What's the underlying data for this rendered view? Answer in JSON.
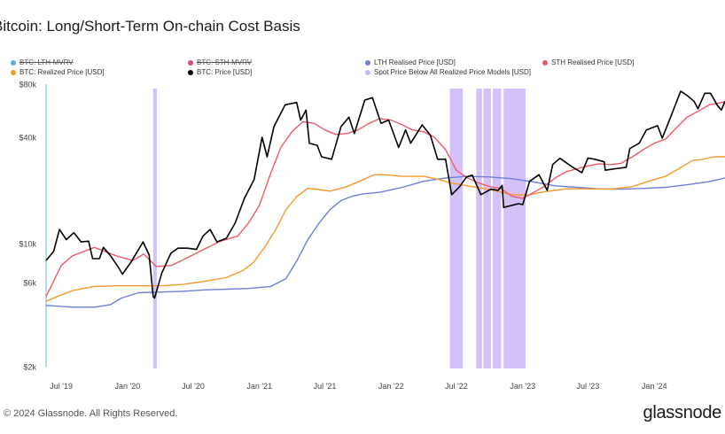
{
  "title": "Bitcoin: Long/Short-Term On-chain Cost Basis",
  "footer": "© 2024 Glassnode. All Rights Reserved.",
  "brand": "glassnode",
  "colors": {
    "lth_mvrv": "#5ab4e0",
    "sth_mvrv": "#e0457b",
    "lth_price": "#6d7fd6",
    "sth_price": "#ee5a6a",
    "realized_price": "#f39a2b",
    "btc_price": "#000000",
    "below_all": "#cdb6f7"
  },
  "legend": [
    {
      "label": "BTC: LTH-MVRV",
      "color": "#5ab4e0",
      "disabled": true
    },
    {
      "label": "BTC: STH-MVRV",
      "color": "#e0457b",
      "disabled": true
    },
    {
      "label": "LTH Realised Price [USD]",
      "color": "#6d7fd6",
      "disabled": false
    },
    {
      "label": "STH Realised Price [USD]",
      "color": "#ee5a6a",
      "disabled": false
    },
    {
      "label": "BTC: Realized Price [USD]",
      "color": "#f39a2b",
      "disabled": false
    },
    {
      "label": "BTC: Price [USD]",
      "color": "#000000",
      "disabled": false
    },
    {
      "label": "Spot Price Below All Realized Price Models [USD]",
      "color": "#cdb6f7",
      "disabled": false
    }
  ],
  "chart_data": {
    "type": "line",
    "title": "Bitcoin: Long/Short-Term On-chain Cost Basis",
    "y_scale": "log",
    "ylim": [
      2000,
      80000
    ],
    "xlim": [
      "2019-05-20",
      "2024-07-15"
    ],
    "y_ticks": [
      {
        "value": 2000,
        "label": "$2k"
      },
      {
        "value": 6000,
        "label": "$6k"
      },
      {
        "value": 10000,
        "label": "$10k"
      },
      {
        "value": 40000,
        "label": "$40k"
      },
      {
        "value": 80000,
        "label": "$80k"
      }
    ],
    "x_ticks": [
      {
        "date": "2019-07-01",
        "label": "Jul '19"
      },
      {
        "date": "2020-01-01",
        "label": "Jan '20"
      },
      {
        "date": "2020-07-01",
        "label": "Jul '20"
      },
      {
        "date": "2021-01-01",
        "label": "Jan '21"
      },
      {
        "date": "2021-07-01",
        "label": "Jul '21"
      },
      {
        "date": "2022-01-01",
        "label": "Jan '22"
      },
      {
        "date": "2022-07-01",
        "label": "Jul '22"
      },
      {
        "date": "2023-01-01",
        "label": "Jan '23"
      },
      {
        "date": "2023-07-01",
        "label": "Jul '23"
      },
      {
        "date": "2024-01-01",
        "label": "Jan '24"
      }
    ],
    "grid": false,
    "legend_position": "top",
    "series": [
      {
        "name": "BTC: Price [USD]",
        "key": "btc_price",
        "points": [
          [
            "2019-05-20",
            8000
          ],
          [
            "2019-06-10",
            9000
          ],
          [
            "2019-06-26",
            12000
          ],
          [
            "2019-07-15",
            10500
          ],
          [
            "2019-08-05",
            11500
          ],
          [
            "2019-08-25",
            10200
          ],
          [
            "2019-09-15",
            10300
          ],
          [
            "2019-09-26",
            8200
          ],
          [
            "2019-10-15",
            8200
          ],
          [
            "2019-10-26",
            9500
          ],
          [
            "2019-11-15",
            8500
          ],
          [
            "2019-12-05",
            7400
          ],
          [
            "2019-12-18",
            6700
          ],
          [
            "2020-01-10",
            7800
          ],
          [
            "2020-02-13",
            10200
          ],
          [
            "2020-03-01",
            8600
          ],
          [
            "2020-03-12",
            5000
          ],
          [
            "2020-03-16",
            4900
          ],
          [
            "2020-04-05",
            6800
          ],
          [
            "2020-04-30",
            8800
          ],
          [
            "2020-05-20",
            9400
          ],
          [
            "2020-06-15",
            9400
          ],
          [
            "2020-07-10",
            9250
          ],
          [
            "2020-07-28",
            11000
          ],
          [
            "2020-08-17",
            12000
          ],
          [
            "2020-09-05",
            10200
          ],
          [
            "2020-10-01",
            10700
          ],
          [
            "2020-10-25",
            13000
          ],
          [
            "2020-11-20",
            18000
          ],
          [
            "2020-12-17",
            23000
          ],
          [
            "2021-01-08",
            40000
          ],
          [
            "2021-01-22",
            31000
          ],
          [
            "2021-02-10",
            46000
          ],
          [
            "2021-03-13",
            61000
          ],
          [
            "2021-04-14",
            63000
          ],
          [
            "2021-04-25",
            50000
          ],
          [
            "2021-05-10",
            57000
          ],
          [
            "2021-05-19",
            37000
          ],
          [
            "2021-06-10",
            36000
          ],
          [
            "2021-06-22",
            31000
          ],
          [
            "2021-07-20",
            30000
          ],
          [
            "2021-08-15",
            46000
          ],
          [
            "2021-09-06",
            52000
          ],
          [
            "2021-09-21",
            42000
          ],
          [
            "2021-10-20",
            65000
          ],
          [
            "2021-11-10",
            67000
          ],
          [
            "2021-12-04",
            48000
          ],
          [
            "2021-12-25",
            50000
          ],
          [
            "2022-01-22",
            35000
          ],
          [
            "2022-02-10",
            44000
          ],
          [
            "2022-02-24",
            37000
          ],
          [
            "2022-03-28",
            47000
          ],
          [
            "2022-04-20",
            41000
          ],
          [
            "2022-05-10",
            30000
          ],
          [
            "2022-06-01",
            30000
          ],
          [
            "2022-06-18",
            18900
          ],
          [
            "2022-07-10",
            21000
          ],
          [
            "2022-07-29",
            23800
          ],
          [
            "2022-08-14",
            24400
          ],
          [
            "2022-09-07",
            18900
          ],
          [
            "2022-10-05",
            20300
          ],
          [
            "2022-10-25",
            20000
          ],
          [
            "2022-11-05",
            21300
          ],
          [
            "2022-11-09",
            16000
          ],
          [
            "2022-12-20",
            16800
          ],
          [
            "2023-01-01",
            16600
          ],
          [
            "2023-01-20",
            22500
          ],
          [
            "2023-02-15",
            24500
          ],
          [
            "2023-03-10",
            20000
          ],
          [
            "2023-03-25",
            28000
          ],
          [
            "2023-04-14",
            30400
          ],
          [
            "2023-05-20",
            27000
          ],
          [
            "2023-06-14",
            25200
          ],
          [
            "2023-07-01",
            30500
          ],
          [
            "2023-07-20",
            30000
          ],
          [
            "2023-08-15",
            29000
          ],
          [
            "2023-08-18",
            26000
          ],
          [
            "2023-09-15",
            26500
          ],
          [
            "2023-10-15",
            27000
          ],
          [
            "2023-10-25",
            34500
          ],
          [
            "2023-11-20",
            37000
          ],
          [
            "2023-12-10",
            44000
          ],
          [
            "2024-01-10",
            46500
          ],
          [
            "2024-01-23",
            39500
          ],
          [
            "2024-02-15",
            52000
          ],
          [
            "2024-03-14",
            73000
          ],
          [
            "2024-04-01",
            69000
          ],
          [
            "2024-04-20",
            64000
          ],
          [
            "2024-05-01",
            58000
          ],
          [
            "2024-05-20",
            71000
          ],
          [
            "2024-06-05",
            71000
          ],
          [
            "2024-06-24",
            60500
          ],
          [
            "2024-07-05",
            57000
          ],
          [
            "2024-07-15",
            64000
          ]
        ]
      },
      {
        "name": "STH Realised Price [USD]",
        "key": "sth_price",
        "points": [
          [
            "2019-05-20",
            5000
          ],
          [
            "2019-07-01",
            7500
          ],
          [
            "2019-08-01",
            8500
          ],
          [
            "2019-10-01",
            9500
          ],
          [
            "2019-12-01",
            8500
          ],
          [
            "2020-01-15",
            8000
          ],
          [
            "2020-02-15",
            8700
          ],
          [
            "2020-03-20",
            7400
          ],
          [
            "2020-05-01",
            7500
          ],
          [
            "2020-06-15",
            8300
          ],
          [
            "2020-08-01",
            9300
          ],
          [
            "2020-09-15",
            10300
          ],
          [
            "2020-11-01",
            11000
          ],
          [
            "2020-12-01",
            13000
          ],
          [
            "2021-01-01",
            16500
          ],
          [
            "2021-02-01",
            25000
          ],
          [
            "2021-03-01",
            35000
          ],
          [
            "2021-04-01",
            43000
          ],
          [
            "2021-05-01",
            49000
          ],
          [
            "2021-06-01",
            48000
          ],
          [
            "2021-07-01",
            44000
          ],
          [
            "2021-08-01",
            41500
          ],
          [
            "2021-09-01",
            42000
          ],
          [
            "2021-10-01",
            44000
          ],
          [
            "2021-11-01",
            48000
          ],
          [
            "2021-12-01",
            51000
          ],
          [
            "2022-01-01",
            50000
          ],
          [
            "2022-02-01",
            47000
          ],
          [
            "2022-03-01",
            44000
          ],
          [
            "2022-04-01",
            43000
          ],
          [
            "2022-05-01",
            40000
          ],
          [
            "2022-06-01",
            34000
          ],
          [
            "2022-07-01",
            26000
          ],
          [
            "2022-08-01",
            23500
          ],
          [
            "2022-09-01",
            22000
          ],
          [
            "2022-10-01",
            21000
          ],
          [
            "2022-11-01",
            20500
          ],
          [
            "2022-12-01",
            18500
          ],
          [
            "2023-01-01",
            18000
          ],
          [
            "2023-02-01",
            19500
          ],
          [
            "2023-03-01",
            21000
          ],
          [
            "2023-04-01",
            23500
          ],
          [
            "2023-05-01",
            25500
          ],
          [
            "2023-06-01",
            26500
          ],
          [
            "2023-07-01",
            27500
          ],
          [
            "2023-08-01",
            28300
          ],
          [
            "2023-09-01",
            28000
          ],
          [
            "2023-10-01",
            28500
          ],
          [
            "2023-11-01",
            31000
          ],
          [
            "2023-12-01",
            34000
          ],
          [
            "2024-01-01",
            37000
          ],
          [
            "2024-02-01",
            39000
          ],
          [
            "2024-03-01",
            45000
          ],
          [
            "2024-04-01",
            52000
          ],
          [
            "2024-05-01",
            56000
          ],
          [
            "2024-06-01",
            61000
          ],
          [
            "2024-07-15",
            63500
          ]
        ]
      },
      {
        "name": "BTC: Realized Price [USD]",
        "key": "realized_price",
        "points": [
          [
            "2019-05-20",
            4700
          ],
          [
            "2019-06-20",
            5000
          ],
          [
            "2019-08-01",
            5400
          ],
          [
            "2019-10-01",
            5700
          ],
          [
            "2019-12-01",
            5750
          ],
          [
            "2020-02-01",
            5750
          ],
          [
            "2020-04-01",
            5750
          ],
          [
            "2020-06-01",
            5850
          ],
          [
            "2020-08-01",
            6100
          ],
          [
            "2020-10-01",
            6400
          ],
          [
            "2020-11-15",
            7000
          ],
          [
            "2020-12-15",
            7800
          ],
          [
            "2021-01-15",
            9500
          ],
          [
            "2021-02-15",
            12000
          ],
          [
            "2021-03-15",
            15500
          ],
          [
            "2021-04-15",
            18500
          ],
          [
            "2021-05-15",
            20500
          ],
          [
            "2021-06-15",
            20200
          ],
          [
            "2021-07-15",
            19800
          ],
          [
            "2021-09-01",
            21000
          ],
          [
            "2021-10-15",
            23000
          ],
          [
            "2021-11-15",
            24500
          ],
          [
            "2021-12-15",
            24500
          ],
          [
            "2022-02-01",
            24000
          ],
          [
            "2022-04-01",
            24000
          ],
          [
            "2022-05-15",
            23000
          ],
          [
            "2022-06-15",
            22000
          ],
          [
            "2022-08-01",
            21200
          ],
          [
            "2022-10-01",
            20200
          ],
          [
            "2022-12-01",
            18900
          ],
          [
            "2023-01-15",
            18800
          ],
          [
            "2023-03-01",
            19600
          ],
          [
            "2023-05-01",
            20400
          ],
          [
            "2023-07-01",
            20400
          ],
          [
            "2023-09-01",
            20300
          ],
          [
            "2023-11-01",
            21000
          ],
          [
            "2023-12-15",
            22500
          ],
          [
            "2024-02-01",
            24000
          ],
          [
            "2024-03-15",
            27000
          ],
          [
            "2024-04-15",
            29500
          ],
          [
            "2024-05-15",
            30000
          ],
          [
            "2024-06-15",
            31000
          ],
          [
            "2024-07-15",
            31000
          ]
        ]
      },
      {
        "name": "LTH Realised Price [USD]",
        "key": "lth_price",
        "points": [
          [
            "2019-05-20",
            4450
          ],
          [
            "2019-08-01",
            4350
          ],
          [
            "2019-10-01",
            4350
          ],
          [
            "2019-11-15",
            4500
          ],
          [
            "2019-12-15",
            4900
          ],
          [
            "2020-02-01",
            5250
          ],
          [
            "2020-04-01",
            5300
          ],
          [
            "2020-06-01",
            5350
          ],
          [
            "2020-08-01",
            5450
          ],
          [
            "2020-10-01",
            5500
          ],
          [
            "2020-12-01",
            5550
          ],
          [
            "2021-02-01",
            5700
          ],
          [
            "2021-03-15",
            6300
          ],
          [
            "2021-04-15",
            8000
          ],
          [
            "2021-05-15",
            10500
          ],
          [
            "2021-06-15",
            13000
          ],
          [
            "2021-07-15",
            15500
          ],
          [
            "2021-08-15",
            17500
          ],
          [
            "2021-09-15",
            18500
          ],
          [
            "2021-10-15",
            19100
          ],
          [
            "2021-12-01",
            19500
          ],
          [
            "2022-02-01",
            20800
          ],
          [
            "2022-04-01",
            22500
          ],
          [
            "2022-06-01",
            23500
          ],
          [
            "2022-08-01",
            24000
          ],
          [
            "2022-10-01",
            23800
          ],
          [
            "2022-12-01",
            23300
          ],
          [
            "2023-02-01",
            22300
          ],
          [
            "2023-04-01",
            21200
          ],
          [
            "2023-06-01",
            20800
          ],
          [
            "2023-08-01",
            20400
          ],
          [
            "2023-10-01",
            20300
          ],
          [
            "2023-12-01",
            20500
          ],
          [
            "2024-02-01",
            20800
          ],
          [
            "2024-04-01",
            21500
          ],
          [
            "2024-06-01",
            22400
          ],
          [
            "2024-07-15",
            23500
          ]
        ]
      }
    ],
    "below_all_periods": [
      [
        "2020-03-12",
        "2020-03-22"
      ],
      [
        "2022-06-13",
        "2022-07-19"
      ],
      [
        "2022-08-25",
        "2022-09-10"
      ],
      [
        "2022-09-14",
        "2022-10-05"
      ],
      [
        "2022-10-10",
        "2022-11-02"
      ],
      [
        "2022-11-09",
        "2023-01-09"
      ]
    ]
  }
}
